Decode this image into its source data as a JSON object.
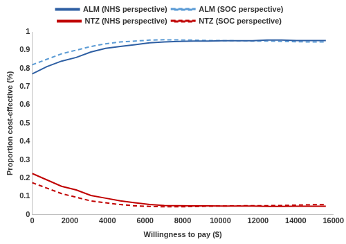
{
  "chart_data": {
    "type": "line",
    "x_label": "Willingness to pay ($)",
    "y_label": "Proportion cost-effective (%)",
    "x": [
      0,
      780,
      1560,
      2340,
      3120,
      3900,
      4680,
      5460,
      6240,
      7020,
      7800,
      8580,
      9360,
      10140,
      10920,
      11700,
      12480,
      13260,
      14040,
      14820,
      15600
    ],
    "series": [
      {
        "name": "ALM (NHS perspective)",
        "color": "#2e5fa3",
        "line_style": "solid",
        "marker": "none",
        "values": [
          0.77,
          0.81,
          0.84,
          0.86,
          0.89,
          0.91,
          0.92,
          0.93,
          0.94,
          0.945,
          0.948,
          0.95,
          0.95,
          0.952,
          0.952,
          0.952,
          0.955,
          0.955,
          0.953,
          0.953,
          0.953
        ]
      },
      {
        "name": "ALM (SOC perspective)",
        "color": "#5b9bd5",
        "line_style": "dashed",
        "marker": "none",
        "values": [
          0.82,
          0.85,
          0.88,
          0.9,
          0.92,
          0.935,
          0.945,
          0.95,
          0.955,
          0.957,
          0.956,
          0.955,
          0.953,
          0.952,
          0.951,
          0.95,
          0.95,
          0.948,
          0.946,
          0.945,
          0.945
        ]
      },
      {
        "name": "NTZ (NHS perspective)",
        "color": "#c00000",
        "line_style": "solid",
        "marker": "none",
        "values": [
          0.225,
          0.19,
          0.155,
          0.135,
          0.105,
          0.09,
          0.075,
          0.065,
          0.055,
          0.05,
          0.049,
          0.048,
          0.048,
          0.047,
          0.047,
          0.047,
          0.045,
          0.045,
          0.046,
          0.046,
          0.046
        ]
      },
      {
        "name": "NTZ (SOC perspective)",
        "color": "#c00000",
        "line_style": "dashed",
        "marker": "none",
        "values": [
          0.175,
          0.145,
          0.115,
          0.095,
          0.075,
          0.065,
          0.055,
          0.048,
          0.045,
          0.043,
          0.043,
          0.044,
          0.046,
          0.047,
          0.048,
          0.049,
          0.049,
          0.05,
          0.052,
          0.054,
          0.054
        ]
      }
    ],
    "xlim": [
      0,
      16000
    ],
    "xticks": [
      0,
      2000,
      4000,
      6000,
      8000,
      10000,
      12000,
      14000,
      16000
    ],
    "ylim": [
      0,
      1
    ],
    "yticks": [
      0,
      0.1,
      0.2,
      0.3,
      0.4,
      0.5,
      0.6,
      0.7,
      0.8,
      0.9,
      1
    ],
    "grid": false,
    "legend": "top"
  }
}
